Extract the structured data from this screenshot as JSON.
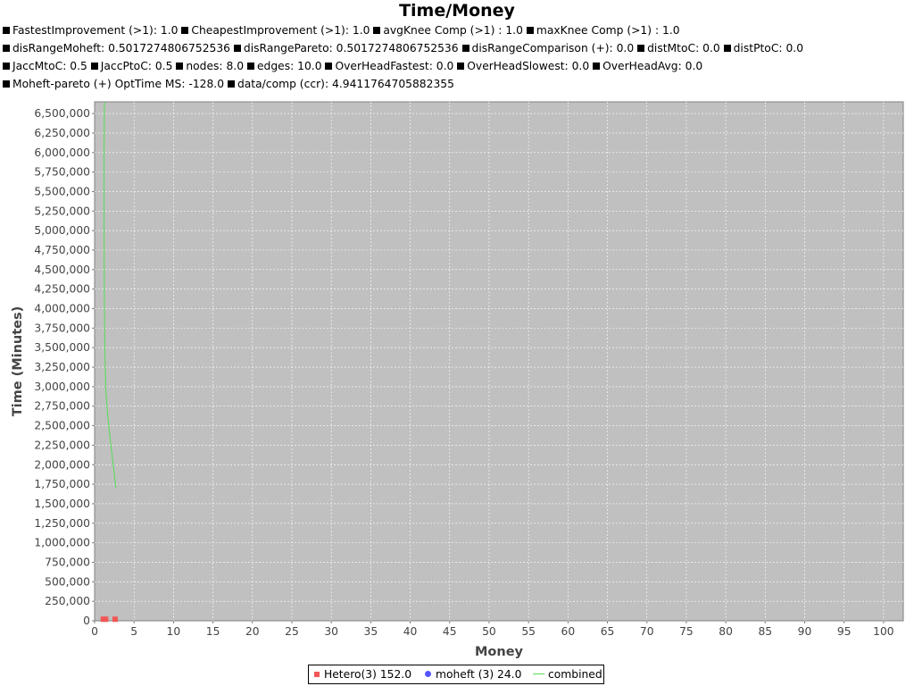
{
  "chart_data": {
    "type": "scatter",
    "title": "Time/Money",
    "subtitles": [
      [
        "FastestImprovement (>1): 1.0",
        "CheapestImprovement (>1): 1.0",
        "avgKnee Comp (>1) : 1.0",
        "maxKnee Comp (>1) : 1.0"
      ],
      [
        "disRangeMoheft: 0.5017274806752536",
        "disRangePareto: 0.5017274806752536",
        "disRangeComparison (+): 0.0",
        "distMtoC: 0.0",
        "distPtoC: 0.0"
      ],
      [
        "JaccMtoC: 0.5",
        "JaccPtoC: 0.5",
        "nodes: 8.0",
        "edges: 10.0",
        "OverHeadFastest: 0.0",
        "OverHeadSlowest: 0.0",
        "OverHeadAvg: 0.0"
      ],
      [
        "Moheft-pareto (+) OptTime MS: -128.0",
        "data/comp (ccr): 4.9411764705882355"
      ]
    ],
    "xlabel": "Money",
    "ylabel": "Time (Minutes)",
    "xlim": [
      0,
      102.5
    ],
    "ylim": [
      0,
      6650000
    ],
    "x_ticks": [
      0,
      5,
      10,
      15,
      20,
      25,
      30,
      35,
      40,
      45,
      50,
      55,
      60,
      65,
      70,
      75,
      80,
      85,
      90,
      95,
      100
    ],
    "y_ticks": [
      0,
      250000,
      500000,
      750000,
      1000000,
      1250000,
      1500000,
      1750000,
      2000000,
      2250000,
      2500000,
      2750000,
      3000000,
      3250000,
      3500000,
      3750000,
      4000000,
      4250000,
      4500000,
      4750000,
      5000000,
      5250000,
      5500000,
      5750000,
      6000000,
      6250000,
      6500000
    ],
    "grid": true,
    "legend_position": "bottom-center",
    "series": [
      {
        "name": "Hetero(3) 152.0",
        "marker": "square",
        "color": "#f25757",
        "points": [
          [
            1.1,
            20000
          ],
          [
            1.4,
            20000
          ],
          [
            2.6,
            20000
          ]
        ]
      },
      {
        "name": "moheft (3) 24.0",
        "marker": "circle",
        "color": "#5555ff",
        "points": []
      },
      {
        "name": "combined",
        "marker": "line",
        "color": "#55dd55",
        "points": [
          [
            1.25,
            6650000
          ],
          [
            1.2,
            6000000
          ],
          [
            1.2,
            5000000
          ],
          [
            1.25,
            4000000
          ],
          [
            1.3,
            3500000
          ],
          [
            1.4,
            3000000
          ],
          [
            1.6,
            2700000
          ],
          [
            2.0,
            2300000
          ],
          [
            2.7,
            1700000
          ]
        ]
      }
    ],
    "plot_background": "#c0c0c0",
    "grid_color": "#ffffff"
  }
}
